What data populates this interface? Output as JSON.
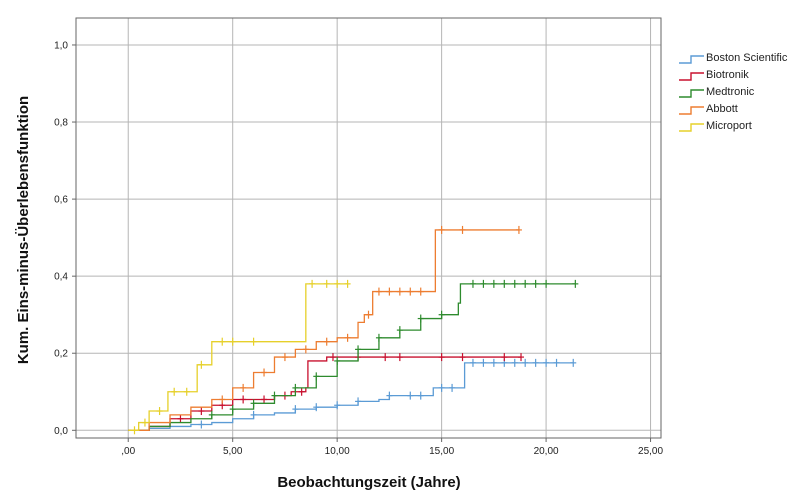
{
  "chart_data": {
    "type": "line",
    "xlabel": "Beobachtungszeit  (Jahre)",
    "ylabel": "Kum. Eins-minus-Überlebensfunktion",
    "xlim": [
      -2.5,
      25.5
    ],
    "ylim": [
      -0.02,
      1.07
    ],
    "xticks": [
      0,
      5,
      10,
      15,
      20,
      25
    ],
    "xtick_labels": [
      ",00",
      "5,00",
      "10,00",
      "15,00",
      "20,00",
      "25,00"
    ],
    "yticks": [
      0,
      0.2,
      0.4,
      0.6,
      0.8,
      1.0
    ],
    "ytick_labels": [
      "0,0",
      "0,2",
      "0,4",
      "0,6",
      "0,8",
      "1,0"
    ],
    "grid": true,
    "legend_position": "right",
    "series": [
      {
        "name": "Boston Scientific",
        "color": "#5b9bd5",
        "points": [
          [
            0,
            0
          ],
          [
            1.0,
            0.005
          ],
          [
            2.0,
            0.01
          ],
          [
            3.0,
            0.015
          ],
          [
            4.0,
            0.02
          ],
          [
            5.0,
            0.03
          ],
          [
            6.0,
            0.04
          ],
          [
            7.0,
            0.045
          ],
          [
            8.0,
            0.055
          ],
          [
            9.0,
            0.06
          ],
          [
            10.0,
            0.065
          ],
          [
            11.0,
            0.075
          ],
          [
            12.0,
            0.08
          ],
          [
            12.5,
            0.09
          ],
          [
            14.5,
            0.09
          ],
          [
            14.6,
            0.11
          ],
          [
            16.0,
            0.11
          ],
          [
            16.1,
            0.175
          ],
          [
            21.3,
            0.175
          ]
        ],
        "censor_x": [
          3.5,
          6.0,
          8.0,
          9.0,
          10.0,
          11.0,
          12.5,
          13.5,
          14.0,
          15.0,
          15.5,
          16.5,
          17.0,
          17.5,
          18.0,
          18.5,
          19.0,
          19.5,
          20.0,
          20.5,
          21.3
        ]
      },
      {
        "name": "Biotronik",
        "color": "#c8102e",
        "points": [
          [
            0,
            0
          ],
          [
            1.0,
            0.01
          ],
          [
            2.0,
            0.03
          ],
          [
            3.0,
            0.05
          ],
          [
            4.0,
            0.065
          ],
          [
            5.0,
            0.08
          ],
          [
            7.0,
            0.09
          ],
          [
            7.8,
            0.1
          ],
          [
            8.5,
            0.11
          ],
          [
            8.6,
            0.18
          ],
          [
            9.5,
            0.19
          ],
          [
            18.8,
            0.19
          ]
        ],
        "censor_x": [
          2.5,
          3.5,
          4.5,
          5.5,
          6.5,
          7.5,
          8.3,
          9.8,
          11.0,
          12.3,
          13.0,
          15.0,
          16.0,
          18.0,
          18.8
        ]
      },
      {
        "name": "Medtronic",
        "color": "#2e8b2e",
        "points": [
          [
            0,
            0
          ],
          [
            1.0,
            0.01
          ],
          [
            2.0,
            0.02
          ],
          [
            3.0,
            0.03
          ],
          [
            4.0,
            0.04
          ],
          [
            5.0,
            0.055
          ],
          [
            6.0,
            0.07
          ],
          [
            7.0,
            0.09
          ],
          [
            8.0,
            0.11
          ],
          [
            9.0,
            0.14
          ],
          [
            10.0,
            0.18
          ],
          [
            11.0,
            0.21
          ],
          [
            12.0,
            0.24
          ],
          [
            13.0,
            0.26
          ],
          [
            14.0,
            0.29
          ],
          [
            15.0,
            0.3
          ],
          [
            15.8,
            0.33
          ],
          [
            15.9,
            0.38
          ],
          [
            21.4,
            0.38
          ]
        ],
        "censor_x": [
          4.0,
          5.0,
          6.0,
          7.0,
          8.0,
          9.0,
          10.0,
          11.0,
          12.0,
          13.0,
          14.0,
          15.0,
          16.5,
          17.0,
          17.5,
          18.0,
          18.5,
          19.0,
          19.5,
          20.0,
          21.4
        ]
      },
      {
        "name": "Abbott",
        "color": "#ed7d31",
        "points": [
          [
            0,
            0
          ],
          [
            1.0,
            0.02
          ],
          [
            2.0,
            0.04
          ],
          [
            3.0,
            0.06
          ],
          [
            4.0,
            0.08
          ],
          [
            5.0,
            0.11
          ],
          [
            6.0,
            0.15
          ],
          [
            7.0,
            0.19
          ],
          [
            8.0,
            0.21
          ],
          [
            9.0,
            0.23
          ],
          [
            10.0,
            0.24
          ],
          [
            11.0,
            0.28
          ],
          [
            11.3,
            0.3
          ],
          [
            11.7,
            0.36
          ],
          [
            14.6,
            0.36
          ],
          [
            14.7,
            0.52
          ],
          [
            18.7,
            0.52
          ]
        ],
        "censor_x": [
          4.5,
          5.5,
          6.5,
          7.5,
          8.5,
          9.5,
          10.5,
          11.5,
          12.0,
          12.5,
          13.0,
          13.5,
          14.0,
          15.0,
          16.0,
          18.7
        ]
      },
      {
        "name": "Microport",
        "color": "#e6d02a",
        "points": [
          [
            0,
            0
          ],
          [
            0.5,
            0.02
          ],
          [
            1.0,
            0.05
          ],
          [
            1.8,
            0.05
          ],
          [
            1.9,
            0.1
          ],
          [
            3.2,
            0.1
          ],
          [
            3.3,
            0.17
          ],
          [
            3.9,
            0.17
          ],
          [
            4.0,
            0.23
          ],
          [
            8.4,
            0.23
          ],
          [
            8.5,
            0.38
          ],
          [
            10.5,
            0.38
          ]
        ],
        "censor_x": [
          0.3,
          0.8,
          1.5,
          2.2,
          2.8,
          3.5,
          4.5,
          5.0,
          6.0,
          8.8,
          9.5,
          10.0,
          10.5
        ]
      }
    ]
  }
}
